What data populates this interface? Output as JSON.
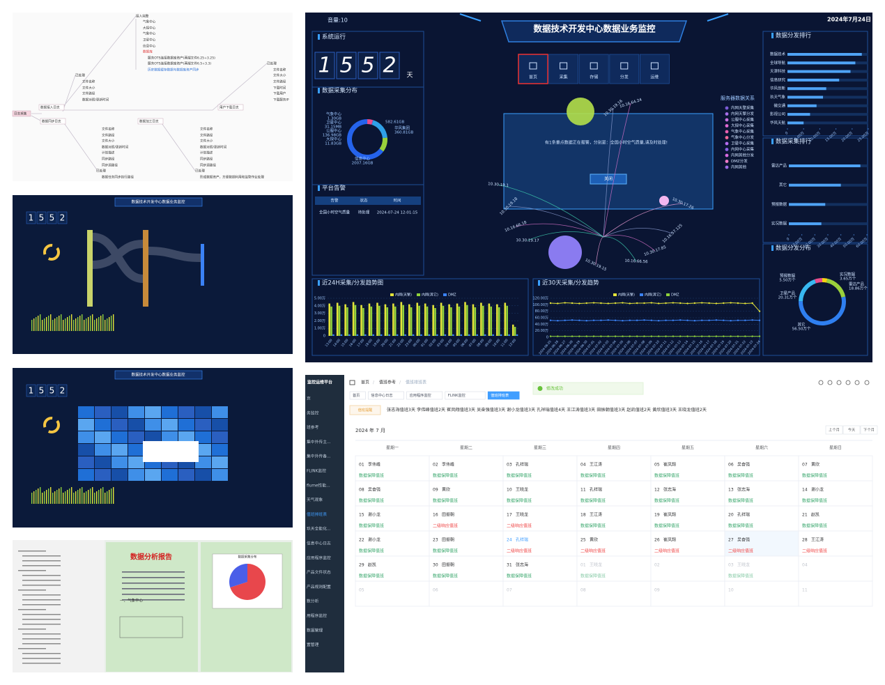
{
  "mindmap": {
    "nodes": [
      "日志采集",
      "数据接入日志",
      "数据同步日志",
      "数据加工日志",
      "用户下载日志",
      "接入完整",
      "气象中心",
      "大探中心",
      "气象中心",
      "卫星中心",
      "信息中心",
      "数据库",
      "服务OTS连接数据库资产(两端文件6.25+3.25)",
      "服务OTS连接数据库资产(两端文件6.5+3.3)",
      "历史数据缓存数据与数据库资产同步",
      "已处理",
      "文件名称",
      "文件大小",
      "文件路径",
      "数据对照/更新时间",
      "已处理",
      "文件名称",
      "文件大小",
      "文件路径",
      "下载时间",
      "下载用户",
      "下载服务IP",
      "文件名称",
      "文件路径",
      "文件大小",
      "数据对照/更新时间",
      "计划描述",
      "同步路径",
      "同步源路径",
      "已处理",
      "数据任务同步执行路径",
      "文件名称",
      "文件路径",
      "文件大小",
      "数据对照/更新时间",
      "计划描述",
      "同步路径",
      "同步源路径",
      "已处理",
      "形成数据资产，方便数据利用和监管作业处理"
    ]
  },
  "thumbnails": [
    {
      "title": "数据技术开发中心数据业务监控",
      "digits": [
        "1",
        "5",
        "5",
        "2"
      ]
    },
    {
      "title": "数据技术开发中心数据业务监控",
      "digits": [
        "1",
        "5",
        "5",
        "2"
      ]
    }
  ],
  "report": {
    "title": "数据分析报告",
    "section": "一、气象中心",
    "chart_title": "数据采集分布",
    "pie": {
      "type": "pie",
      "values": [
        70,
        30
      ],
      "colors": [
        "#e8474c",
        "#4a5ee8"
      ]
    }
  },
  "dashboard": {
    "volume": "音量:10",
    "title": "数据技术开发中心数据业务监控",
    "date": "2024年7月24日",
    "uptime": {
      "title": "系统运行",
      "digits": [
        "1",
        "5",
        "5",
        "2"
      ],
      "unit": "天"
    },
    "nav": [
      "首页",
      "采集",
      "存储",
      "分发",
      "运维"
    ],
    "collection": {
      "type": "pie",
      "title": "数据采集分布",
      "names": [
        "气象中心",
        "卫星中心",
        "公服中心",
        "大探中心",
        null,
        "华风集团",
        "信息中心"
      ],
      "values": [
        1.3,
        0.03115,
        136.98,
        11.83,
        582.61,
        360.81,
        2007.16
      ],
      "value_labels": [
        "1.30GB",
        "31.15MB",
        "136.98GB",
        "11.83GB",
        "582.61GB",
        "360.81GB",
        "2007.16GB"
      ],
      "colors": [
        "#f5d312",
        "#38c172",
        "#e84c8b",
        "#8e5bd8",
        "#2fa0e8",
        "#9ad13b",
        "#2563eb"
      ]
    },
    "alerts": {
      "title": "平台告警",
      "columns": [
        "告警",
        "状态",
        "时间"
      ],
      "rows": [
        [
          "全国小时空气质量",
          "待处理",
          "2024-07-24 12:01:15"
        ]
      ]
    },
    "modal": {
      "message": "有1条重点数据正在报警，分别是：全国小时空气质量,请及时处理!",
      "button": "关闭"
    },
    "servers": {
      "title": "服务器数据关系",
      "items": [
        "内网天擎采集",
        "内网天擎分发",
        "公服中心采集",
        "大探中心采集",
        "气象中心采集",
        "气象中心分发",
        "卫星中心采集",
        "内网中心采集",
        "内网其他分发",
        "DMZ分发",
        "内网其他"
      ],
      "colors": [
        "#7b5cd6",
        "#a66ee8",
        "#c771e0",
        "#e06ad3",
        "#ea5fb0",
        "#f46a9b",
        "#b56cf0",
        "#8a62e6",
        "#d86ae0",
        "#f07ac8",
        "#9c6be6"
      ],
      "ips": [
        "10.30.19.18",
        "10.16.66.18",
        "10.30.19.17",
        "10.30.17.26",
        "10.16.57.125",
        "10.30.17.85",
        "10.16.66.56",
        "10.30.19.15",
        "10.30.19.16",
        "10.16.64.24",
        "10.30.19.1"
      ]
    },
    "dist_rank": {
      "type": "bar",
      "title": "数据分发排行",
      "categories": [
        "数据技术",
        "全球导航",
        "天津科技",
        "信息研究",
        "华风创新",
        "玖天气象",
        "微交通",
        "影视公司",
        "华风天航"
      ],
      "values": [
        23,
        21,
        19.5,
        16,
        12,
        11,
        9,
        7,
        5
      ],
      "color": "#4fa3f5",
      "xlim": [
        0,
        25
      ],
      "xticks": [
        0,
        {
          "value": 5,
          "label": "5.00万"
        },
        {
          "value": 10,
          "label": "10.00万"
        },
        {
          "value": 15,
          "label": "15.00万"
        },
        {
          "value": 20,
          "label": "20.00万"
        },
        {
          "value": 25,
          "label": "25.00万"
        }
      ]
    },
    "collect_rank": {
      "type": "bar",
      "title": "数据采集排行",
      "categories": [
        "雷达产品",
        "其它",
        "预报数据",
        "实况数据"
      ],
      "values": [
        55,
        40,
        28,
        25
      ],
      "color": "#4fa3f5",
      "xlim": [
        0,
        60
      ],
      "xticks": [
        0,
        {
          "value": 10,
          "label": "10.00万"
        },
        {
          "value": 20,
          "label": "20.00万"
        },
        {
          "value": 30,
          "label": "30.00万"
        },
        {
          "value": 40,
          "label": "40.00万"
        },
        {
          "value": 50,
          "label": "50.00万"
        },
        {
          "value": 60,
          "label": "60.00万"
        }
      ]
    },
    "dist_share": {
      "type": "pie",
      "title": "数据分发分布",
      "names": [
        "实况数据",
        "雷达产品",
        "其它",
        "卫星产品",
        "预报数据"
      ],
      "values": [
        3.65,
        18.86,
        56.5,
        20.31,
        5.5
      ],
      "value_labels": [
        "3.65万个",
        "18.86万个",
        "56.50万个",
        "20.31万个",
        "5.50万个"
      ],
      "colors": [
        "#f5d312",
        "#9ad13b",
        "#2f7ff0",
        "#38b8f0",
        "#e84c8b"
      ]
    },
    "trend24": {
      "type": "bar",
      "title": "近24H采集/分发趋势图",
      "categories": [
        "13:00",
        "14:00",
        "15:00",
        "16:00",
        "17:00",
        "18:00",
        "19:00",
        "20:00",
        "21:00",
        "22:00",
        "23:00",
        "00:00",
        "01:00",
        "02:00",
        "03:00",
        "04:00",
        "05:00",
        "06:00",
        "07:00",
        "08:00",
        "09:00",
        "10:00",
        "11:00",
        "12:00"
      ],
      "series": [
        {
          "name": "内网(天擎)",
          "color": "#e4e43a",
          "values": [
            4.3,
            4.4,
            4.2,
            4.5,
            4.1,
            4.3,
            4.4,
            4.2,
            4.3,
            4.5,
            4.2,
            4.4,
            4.3,
            4.1,
            4.4,
            4.2,
            4.3,
            4.5,
            4.2,
            4.4,
            4.3,
            4.2,
            4.4,
            1.5
          ]
        },
        {
          "name": "内网(其它)",
          "color": "#8fd13b",
          "values": [
            3.9,
            4.0,
            3.8,
            4.1,
            3.7,
            3.9,
            4.0,
            3.8,
            3.9,
            4.1,
            3.8,
            4.0,
            3.9,
            3.7,
            4.0,
            3.8,
            3.9,
            4.1,
            3.8,
            4.0,
            3.9,
            3.8,
            4.0,
            1.2
          ]
        },
        {
          "name": "DMZ",
          "color": "#3b82f6",
          "values": [
            0.2,
            0.2,
            0.2,
            0.2,
            0.2,
            0.2,
            0.2,
            0.2,
            0.2,
            0.2,
            0.2,
            0.2,
            0.2,
            0.2,
            0.2,
            0.2,
            0.2,
            0.2,
            0.2,
            0.2,
            0.2,
            0.2,
            0.2,
            0.2
          ]
        }
      ],
      "ylim": [
        0,
        5
      ],
      "yticks": [
        0,
        {
          "value": 1,
          "label": "1.00万"
        },
        {
          "value": 2,
          "label": "2.00万"
        },
        {
          "value": 3,
          "label": "3.00万"
        },
        {
          "value": 4,
          "label": "4.00万"
        },
        {
          "value": 5,
          "label": "5.00万"
        }
      ]
    },
    "trend30": {
      "type": "line",
      "title": "近30天采集/分发趋势",
      "categories": [
        "2024-06-25",
        "2024-06-26",
        "2024-06-27",
        "2024-06-28",
        "2024-06-29",
        "2024-06-30",
        "2024-07-01",
        "2024-07-02",
        "2024-07-03",
        "2024-07-04",
        "2024-07-05",
        "2024-07-06",
        "2024-07-07",
        "2024-07-08",
        "2024-07-09",
        "2024-07-10",
        "2024-07-11",
        "2024-07-12",
        "2024-07-13",
        "2024-07-14",
        "2024-07-15",
        "2024-07-16",
        "2024-07-17",
        "2024-07-18",
        "2024-07-19",
        "2024-07-20",
        "2024-07-21",
        "2024-07-22",
        "2024-07-23",
        "2024-07-24"
      ],
      "series": [
        {
          "name": "内网(天擎)",
          "color": "#e4e43a",
          "values": [
            105,
            104,
            106,
            105,
            104,
            105,
            106,
            105,
            104,
            105,
            106,
            104,
            105,
            105,
            106,
            104,
            105,
            106,
            105,
            104,
            105,
            106,
            105,
            104,
            105,
            106,
            105,
            104,
            105,
            80
          ]
        },
        {
          "name": "内网(其它)",
          "color": "#3b82f6",
          "values": [
            52,
            51,
            52,
            53,
            52,
            51,
            52,
            52,
            53,
            52,
            51,
            52,
            52,
            53,
            52,
            51,
            52,
            52,
            53,
            52,
            51,
            52,
            52,
            53,
            52,
            51,
            52,
            52,
            53,
            52
          ]
        },
        {
          "name": "DMZ",
          "color": "#8fd13b",
          "values": [
            3,
            3,
            3,
            3,
            3,
            3,
            3,
            3,
            3,
            3,
            3,
            3,
            3,
            3,
            3,
            3,
            3,
            3,
            3,
            3,
            3,
            3,
            3,
            3,
            3,
            3,
            3,
            3,
            3,
            3
          ]
        }
      ],
      "ylim": [
        0,
        120
      ],
      "yticks": [
        0,
        {
          "value": 20,
          "label": "20.00万"
        },
        {
          "value": 40,
          "label": "40.00万"
        },
        {
          "value": 60,
          "label": "60.00万"
        },
        {
          "value": 80,
          "label": "80.00万"
        },
        {
          "value": 100,
          "label": "100.00万"
        },
        {
          "value": 120,
          "label": "120.00万"
        }
      ]
    }
  },
  "calendar": {
    "platform": "监控运维平台",
    "menu": [
      "页",
      "务监控",
      "班参考",
      "集中外传主...",
      "集中外传备...",
      "FLINK监控",
      "flume性能...",
      "天气观象",
      "值班排班表",
      "玖天全能化...",
      "信息中心日志",
      "应用程序监控",
      "产品文件状态",
      "产品规则配置",
      "数分析",
      "用程序监控",
      "数据管理",
      "置管理"
    ],
    "active_menu": 8,
    "breadcrumb": [
      "首页",
      "值班参考",
      "值班排班表"
    ],
    "toast": "修改成功",
    "tabs": [
      "首页",
      "信息中心日志",
      "应用程序监控",
      "FLINK监控",
      "值班排班表"
    ],
    "active_tab": 4,
    "notice_tag": "值班提醒",
    "notice": "张志海值班3天 李伟峰值班2天 崔凤翔值班3天 吴奋强值班3天 谢小龙值班3天 孔祥瑞值班4天 王江涛值班3天 田振朝值班3天 赵凯值班2天 黄欣值班3天 王晓龙值班2天",
    "month": "2024 年 7 月",
    "buttons": [
      "上个月",
      "今天",
      "下个月"
    ],
    "weekdays": [
      "星期一",
      "星期二",
      "星期三",
      "星期四",
      "星期五",
      "星期六",
      "星期日"
    ],
    "duty_colors": {
      "数据保障值班": "#3aa76d",
      "二级响应值班": "#f04848"
    },
    "weeks": [
      [
        {
          "day": "01",
          "name": "李伟峰",
          "duty": "数据保障值班"
        },
        {
          "day": "02",
          "name": "李伟峰",
          "duty": "数据保障值班"
        },
        {
          "day": "03",
          "name": "孔祥瑞",
          "duty": "数据保障值班"
        },
        {
          "day": "04",
          "name": "王江涛",
          "duty": "数据保障值班"
        },
        {
          "day": "05",
          "name": "崔凤翔",
          "duty": "数据保障值班"
        },
        {
          "day": "06",
          "name": "吴奋强",
          "duty": "数据保障值班"
        },
        {
          "day": "07",
          "name": "黄欣",
          "duty": "数据保障值班"
        }
      ],
      [
        {
          "day": "08",
          "name": "吴奋强",
          "duty": "数据保障值班"
        },
        {
          "day": "09",
          "name": "黄欣",
          "duty": "数据保障值班"
        },
        {
          "day": "10",
          "name": "王晓龙",
          "duty": "数据保障值班"
        },
        {
          "day": "11",
          "name": "孔祥瑞",
          "duty": "数据保障值班"
        },
        {
          "day": "12",
          "name": "张志海",
          "duty": "数据保障值班"
        },
        {
          "day": "13",
          "name": "张志海",
          "duty": "数据保障值班"
        },
        {
          "day": "14",
          "name": "谢小龙",
          "duty": "数据保障值班"
        }
      ],
      [
        {
          "day": "15",
          "name": "谢小龙",
          "duty": "数据保障值班"
        },
        {
          "day": "16",
          "name": "田振朝",
          "duty": "二级响应值班"
        },
        {
          "day": "17",
          "name": "王晓龙",
          "duty": "二级响应值班"
        },
        {
          "day": "18",
          "name": "王江涛",
          "duty": "数据保障值班"
        },
        {
          "day": "19",
          "name": "崔凤翔",
          "duty": "数据保障值班"
        },
        {
          "day": "20",
          "name": "孔祥瑞",
          "duty": "数据保障值班"
        },
        {
          "day": "21",
          "name": "赵凯",
          "duty": "数据保障值班"
        }
      ],
      [
        {
          "day": "22",
          "name": "谢小龙",
          "duty": "数据保障值班"
        },
        {
          "day": "23",
          "name": "田振朝",
          "duty": "数据保障值班"
        },
        {
          "day": "24",
          "name": "孔祥瑞",
          "duty": "二级响应值班",
          "today": true
        },
        {
          "day": "25",
          "name": "黄欣",
          "duty": "二级响应值班"
        },
        {
          "day": "26",
          "name": "崔凤翔",
          "duty": "二级响应值班"
        },
        {
          "day": "27",
          "name": "吴奋强",
          "duty": "二级响应值班",
          "selected": true
        },
        {
          "day": "28",
          "name": "王江涛",
          "duty": "二级响应值班"
        }
      ],
      [
        {
          "day": "29",
          "name": "赵凯",
          "duty": "数据保障值班"
        },
        {
          "day": "30",
          "name": "田振朝",
          "duty": "数据保障值班"
        },
        {
          "day": "31",
          "name": "张志海",
          "duty": "数据保障值班"
        },
        {
          "day": "01",
          "name": "王晓龙",
          "duty": "数据保障值班",
          "muted": true
        },
        {
          "day": "02",
          "muted": true
        },
        {
          "day": "03",
          "name": "王晓龙",
          "duty": "数据保障值班",
          "muted": true
        },
        {
          "day": "04",
          "muted": true
        }
      ],
      [
        {
          "day": "05",
          "muted": true
        },
        {
          "day": "06",
          "muted": true
        },
        {
          "day": "07",
          "muted": true
        },
        {
          "day": "08",
          "muted": true
        },
        {
          "day": "09",
          "muted": true
        },
        {
          "day": "10",
          "muted": true
        },
        {
          "day": "11",
          "muted": true
        }
      ]
    ]
  }
}
